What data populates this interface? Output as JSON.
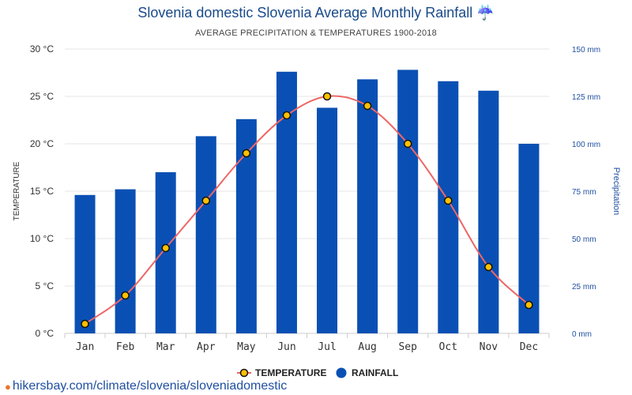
{
  "title": "Slovenia domestic Slovenia Average Monthly Rainfall ☔",
  "subtitle": "AVERAGE PRECIPITATION & TEMPERATURES 1900-2018",
  "source_url": "hikersbay.com/climate/slovenia/sloveniadomestic",
  "colors": {
    "bar": "#0a50b4",
    "line": "#ee6666",
    "marker_fill": "#ffc000",
    "title": "#1a4a8a",
    "right_axis": "#1f4fa0"
  },
  "chart_data": {
    "type": "bar",
    "categories": [
      "Jan",
      "Feb",
      "Mar",
      "Apr",
      "May",
      "Jun",
      "Jul",
      "Aug",
      "Sep",
      "Oct",
      "Nov",
      "Dec"
    ],
    "series": [
      {
        "name": "RAINFALL",
        "type": "bar",
        "axis": "right",
        "unit": "mm",
        "values": [
          73,
          76,
          85,
          104,
          113,
          138,
          119,
          134,
          139,
          133,
          128,
          100
        ]
      },
      {
        "name": "TEMPERATURE",
        "type": "line",
        "axis": "left",
        "unit": "°C",
        "values": [
          1,
          4,
          9,
          14,
          19,
          23,
          25,
          24,
          20,
          14,
          7,
          3
        ]
      }
    ],
    "ylabel_left": "TEMPERATURE",
    "ylabel_right": "Precipitation",
    "ylim_left": [
      0,
      30
    ],
    "ylim_right": [
      0,
      150
    ],
    "yticks_left": [
      "0 °C",
      "5 °C",
      "10 °C",
      "15 °C",
      "20 °C",
      "25 °C",
      "30 °C"
    ],
    "yticks_right": [
      "0 mm",
      "25 mm",
      "50 mm",
      "75 mm",
      "100 mm",
      "125 mm",
      "150 mm"
    ],
    "legend": [
      "TEMPERATURE",
      "RAINFALL"
    ],
    "legend_position": "bottom",
    "grid": true
  }
}
